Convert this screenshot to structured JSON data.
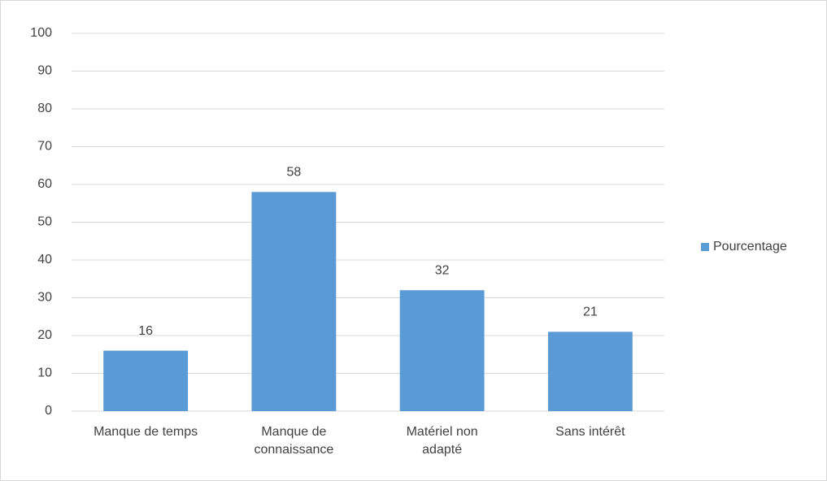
{
  "chart_data": {
    "type": "bar",
    "categories": [
      "Manque de temps",
      "Manque de connaissance",
      "Matériel non adapté",
      "Sans intérêt"
    ],
    "series": [
      {
        "name": "Pourcentage",
        "color": "#5b9bd5",
        "values": [
          16,
          58,
          32,
          21
        ]
      }
    ],
    "ylim": [
      0,
      100
    ],
    "yticks": [
      0,
      10,
      20,
      30,
      40,
      50,
      60,
      70,
      80,
      90,
      100
    ],
    "grid": true,
    "legend": "right"
  }
}
